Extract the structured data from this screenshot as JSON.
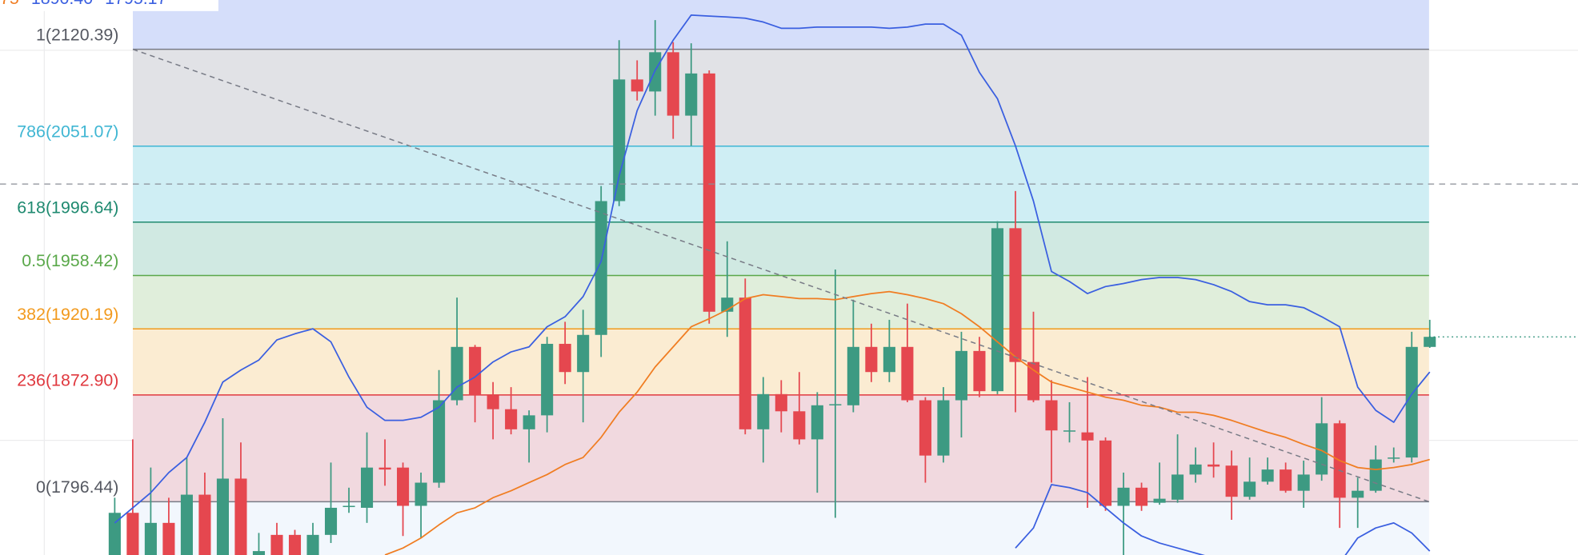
{
  "chart_data": {
    "type": "candlestick",
    "ylim": [
      1758.3,
      2155.7
    ],
    "up_color": "#3d9a82",
    "down_color": "#e5474f",
    "header": [
      {
        "text": "75",
        "color": "#f07d22"
      },
      {
        "text": "1890.40",
        "color": "#3a5fe0"
      },
      {
        "text": "1795.17",
        "color": "#3a5fe0"
      }
    ],
    "fib_fill_above": "#d5defa",
    "fib_levels": [
      {
        "label": "1(2120.39)",
        "value": 2120.39,
        "color": "#787b86",
        "text_color": "#555861",
        "fill": "#e1e2e6"
      },
      {
        "label": "786(2051.07)",
        "value": 2051.07,
        "color": "#3fb6d3",
        "text_color": "#3fb6d3",
        "fill": "#cfeef4"
      },
      {
        "label": "618(1996.64)",
        "value": 1996.64,
        "color": "#1f8a70",
        "text_color": "#1f8a70",
        "fill": "#d0e9e2"
      },
      {
        "label": "0.5(1958.42)",
        "value": 1958.42,
        "color": "#5aa84a",
        "text_color": "#5aa84a",
        "fill": "#e0eedb"
      },
      {
        "label": "382(1920.19)",
        "value": 1920.19,
        "color": "#f29a1e",
        "text_color": "#f29a1e",
        "fill": "#fbecd2"
      },
      {
        "label": "236(1872.90)",
        "value": 1872.9,
        "color": "#e0393f",
        "text_color": "#e0393f",
        "fill": "#f1d9df"
      },
      {
        "label": "0(1796.44)",
        "value": 1796.44,
        "color": "#787b86",
        "text_color": "#555861",
        "fill": "#f2f7fd"
      }
    ],
    "hline": 2023.9,
    "ohlc": [
      [
        1752.5,
        1799.3,
        1745.3,
        1788.5
      ],
      [
        1788.5,
        1841.1,
        1745.3,
        1752.5
      ],
      [
        1752.5,
        1820.9,
        1745.3,
        1781.3
      ],
      [
        1781.3,
        1799.3,
        1745.3,
        1752.5
      ],
      [
        1752.5,
        1828.1,
        1745.3,
        1801.5
      ],
      [
        1801.5,
        1817.3,
        1745.3,
        1752.5
      ],
      [
        1752.5,
        1856.2,
        1745.3,
        1813.0
      ],
      [
        1813.0,
        1838.9,
        1745.3,
        1752.5
      ],
      [
        1748.9,
        1774.1,
        1741.7,
        1761.1
      ],
      [
        1772.7,
        1781.3,
        1745.3,
        1752.5
      ],
      [
        1772.7,
        1776.3,
        1745.3,
        1752.5
      ],
      [
        1752.5,
        1781.3,
        1745.3,
        1772.7
      ],
      [
        1772.7,
        1824.5,
        1766.9,
        1792.1
      ],
      [
        1792.8,
        1806.5,
        1788.5,
        1793.5
      ],
      [
        1792.1,
        1846.1,
        1781.3,
        1820.9
      ],
      [
        1820.9,
        1841.1,
        1807.9,
        1819.5
      ],
      [
        1820.9,
        1824.5,
        1771.9,
        1793.5
      ],
      [
        1793.5,
        1817.3,
        1770.5,
        1810.1
      ],
      [
        1810.1,
        1890.7,
        1806.5,
        1869.1
      ],
      [
        1869.1,
        1942.6,
        1865.5,
        1907.3
      ],
      [
        1907.3,
        1908.7,
        1853.3,
        1872.7
      ],
      [
        1872.7,
        1882.1,
        1841.1,
        1862.7
      ],
      [
        1862.7,
        1878.5,
        1844.7,
        1848.3
      ],
      [
        1848.3,
        1861.9,
        1824.5,
        1858.3
      ],
      [
        1858.3,
        1914.5,
        1846.1,
        1909.5
      ],
      [
        1909.5,
        1925.3,
        1880.7,
        1889.3
      ],
      [
        1889.3,
        1933.9,
        1853.3,
        1915.9
      ],
      [
        1915.9,
        2022.5,
        1900.1,
        2011.7
      ],
      [
        2011.7,
        2126.9,
        2008.1,
        2098.8
      ],
      [
        2098.8,
        2112.5,
        2083.7,
        2090.2
      ],
      [
        2090.2,
        2141.3,
        2072.9,
        2118.3
      ],
      [
        2118.3,
        2125.5,
        2056.3,
        2072.9
      ],
      [
        2072.9,
        2124.7,
        2051.3,
        2103.1
      ],
      [
        2103.1,
        2105.3,
        1923.9,
        1932.5
      ],
      [
        1932.5,
        1982.9,
        1914.5,
        1942.6
      ],
      [
        1942.6,
        1956.3,
        1844.7,
        1848.3
      ],
      [
        1848.3,
        1885.7,
        1824.5,
        1873.5
      ],
      [
        1873.5,
        1883.5,
        1846.1,
        1861.2
      ],
      [
        1861.2,
        1889.3,
        1837.5,
        1841.1
      ],
      [
        1841.1,
        1874.9,
        1802.9,
        1865.5
      ],
      [
        1865.5,
        1962.7,
        1784.9,
        1866.3
      ],
      [
        1865.5,
        1941.1,
        1860.5,
        1907.3
      ],
      [
        1907.3,
        1923.9,
        1882.1,
        1889.3
      ],
      [
        1889.3,
        1926.7,
        1882.1,
        1907.3
      ],
      [
        1907.3,
        1938.3,
        1867.7,
        1869.1
      ],
      [
        1869.1,
        1871.3,
        1810.1,
        1829.5
      ],
      [
        1829.5,
        1878.5,
        1824.5,
        1869.1
      ],
      [
        1869.1,
        1918.1,
        1842.5,
        1904.4
      ],
      [
        1904.4,
        1914.5,
        1871.3,
        1875.6
      ],
      [
        1875.6,
        1997.3,
        1873.5,
        1992.3
      ],
      [
        1992.3,
        2018.9,
        1860.5,
        1896.5
      ],
      [
        1896.5,
        1932.5,
        1867.7,
        1869.1
      ],
      [
        1869.1,
        1883.5,
        1810.1,
        1847.5
      ],
      [
        1847.5,
        1867.7,
        1838.9,
        1847.5
      ],
      [
        1846.1,
        1885.7,
        1792.1,
        1840.3
      ],
      [
        1840.3,
        1842.5,
        1789.9,
        1793.5
      ],
      [
        1793.5,
        1817.3,
        1758.3,
        1806.5
      ],
      [
        1806.5,
        1810.1,
        1789.9,
        1793.5
      ],
      [
        1795.7,
        1824.5,
        1794.3,
        1798.6
      ],
      [
        1797.9,
        1844.7,
        1795.7,
        1815.9
      ],
      [
        1815.9,
        1835.3,
        1810.1,
        1823.1
      ],
      [
        1823.1,
        1838.9,
        1813.7,
        1821.6
      ],
      [
        1822.3,
        1833.1,
        1783.5,
        1800.0
      ],
      [
        1800.0,
        1828.1,
        1797.9,
        1810.8
      ],
      [
        1810.8,
        1828.1,
        1808.7,
        1819.5
      ],
      [
        1819.5,
        1824.5,
        1802.9,
        1804.3
      ],
      [
        1804.3,
        1825.9,
        1792.1,
        1815.9
      ],
      [
        1815.9,
        1871.3,
        1811.5,
        1852.6
      ],
      [
        1852.6,
        1854.7,
        1777.7,
        1799.3
      ],
      [
        1799.3,
        1813.7,
        1777.7,
        1804.3
      ],
      [
        1804.3,
        1836.7,
        1802.9,
        1826.7
      ],
      [
        1827.4,
        1835.3,
        1824.5,
        1828.1
      ],
      [
        1828.1,
        1918.1,
        1824.5,
        1907.3
      ],
      [
        1907.3,
        1926.7,
        1906.6,
        1914.5
      ]
    ],
    "overlays": [
      {
        "color": "#3a5fe0",
        "values": [
          1781.3,
          1792.1,
          1802.9,
          1817.3,
          1828.1,
          1853.3,
          1882.1,
          1890.7,
          1897.9,
          1912.3,
          1916.7,
          1920.3,
          1910.9,
          1885.7,
          1864.1,
          1854.7,
          1854.7,
          1856.9,
          1864.1,
          1878.5,
          1885.7,
          1896.5,
          1903.7,
          1907.3,
          1921.7,
          1928.9,
          1943.3,
          1968.5,
          2029.7,
          2076.5,
          2105.3,
          2126.9,
          2144.9,
          2144.2,
          2143.5,
          2142.7,
          2139.9,
          2135.5,
          2135.5,
          2136.3,
          2136.3,
          2136.3,
          2136.3,
          2135.5,
          2136.3,
          2138.4,
          2138.4,
          2130.5,
          2103.9,
          2085.1,
          2051.3,
          2011.7,
          1961.3,
          1954.1,
          1945.5,
          1950.5,
          1952.7,
          1955.5,
          1957.0,
          1957.0,
          1955.5,
          1951.9,
          1946.9,
          1939.7,
          1937.5,
          1937.5,
          1935.4,
          1928.9,
          1921.7,
          1878.5,
          1861.9,
          1853.3,
          1873.5,
          1889.3
        ]
      },
      {
        "color": "#3a5fe0",
        "values": [
          null,
          null,
          null,
          null,
          null,
          null,
          null,
          null,
          null,
          null,
          null,
          null,
          null,
          null,
          null,
          null,
          null,
          null,
          null,
          null,
          null,
          null,
          null,
          null,
          null,
          null,
          null,
          null,
          null,
          null,
          null,
          null,
          null,
          null,
          null,
          null,
          null,
          null,
          null,
          null,
          null,
          null,
          null,
          null,
          null,
          null,
          null,
          null,
          null,
          null,
          1763.3,
          1777.7,
          1808.7,
          1806.5,
          1802.9,
          1792.1,
          1781.3,
          1771.9,
          1766.9,
          1763.3,
          1759.7,
          1756.1,
          1752.5,
          1748.9,
          1748.9,
          1748.9,
          1751.1,
          1752.5,
          1752.5,
          1770.5,
          1777.7,
          1781.3,
          1774.1,
          1761.1
        ]
      },
      {
        "color": "#f07d22",
        "values": [
          null,
          null,
          null,
          null,
          null,
          null,
          null,
          null,
          null,
          null,
          null,
          null,
          null,
          null,
          null,
          1758.3,
          1763.3,
          1770.5,
          1779.9,
          1788.5,
          1792.1,
          1799.3,
          1804.3,
          1810.1,
          1815.9,
          1823.1,
          1828.1,
          1842.5,
          1860.5,
          1874.9,
          1892.9,
          1907.3,
          1921.7,
          1927.5,
          1933.9,
          1941.9,
          1944.7,
          1943.3,
          1941.9,
          1941.9,
          1941.1,
          1943.3,
          1945.5,
          1946.9,
          1944.7,
          1941.9,
          1938.3,
          1931.1,
          1921.7,
          1910.9,
          1900.1,
          1890.7,
          1882.1,
          1878.5,
          1874.9,
          1871.3,
          1869.1,
          1865.5,
          1864.1,
          1860.5,
          1860.5,
          1858.3,
          1854.7,
          1850.4,
          1846.1,
          1842.5,
          1837.5,
          1833.1,
          1825.9,
          1820.9,
          1819.5,
          1820.9,
          1823.1,
          1826.7
        ]
      }
    ]
  }
}
